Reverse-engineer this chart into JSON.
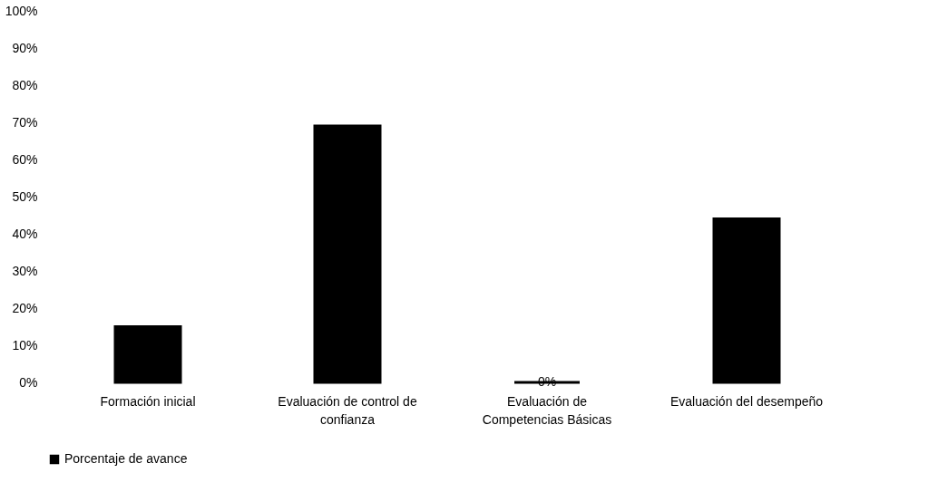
{
  "chart_data": {
    "type": "bar",
    "categories": [
      "Formación inicial",
      "Evaluación de control de confianza",
      "Evaluación de Competencias Básicas",
      "Evaluación del desempeño"
    ],
    "series": [
      {
        "name": "Porcentaje de avance",
        "color": "#000000",
        "values": [
          15,
          69,
          0,
          44
        ],
        "value_labels": [
          null,
          null,
          "0%",
          null
        ]
      }
    ],
    "ylim": [
      0,
      100
    ],
    "yticks": [
      {
        "value": 0,
        "label": "0%"
      },
      {
        "value": 10,
        "label": "10%"
      },
      {
        "value": 20,
        "label": "20%"
      },
      {
        "value": 30,
        "label": "30%"
      },
      {
        "value": 40,
        "label": "40%"
      },
      {
        "value": 50,
        "label": "50%"
      },
      {
        "value": 60,
        "label": "60%"
      },
      {
        "value": 70,
        "label": "70%"
      },
      {
        "value": 80,
        "label": "80%"
      },
      {
        "value": 90,
        "label": "90%"
      },
      {
        "value": 100,
        "label": "100%"
      }
    ],
    "grid": false,
    "legend": "bottom"
  }
}
